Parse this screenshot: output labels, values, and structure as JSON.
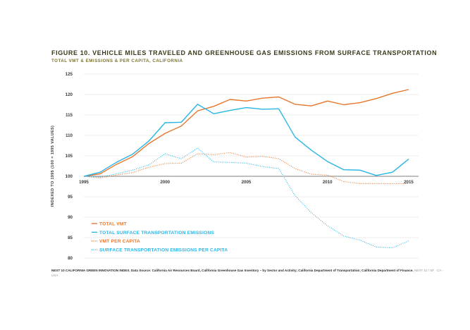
{
  "title": "FIGURE 10. VEHICLE MILES TRAVELED AND GREENHOUSE GAS EMISSIONS FROM SURFACE TRANSPORTATION",
  "subtitle": "TOTAL VMT & EMISSIONS & PER CAPITA, CALIFORNIA",
  "source": {
    "text": "NEXT 10 CALIFORNIA GREEN INNOVATION INDEX. Data Source: California Air Resources Board, California Greenhouse Gas Inventory – by Sector and Activity; California Department of Transportation; California Department of Finance.",
    "slug": "NEXT 10 / SF · CA · USA"
  },
  "chart_data": {
    "type": "line",
    "ylabel": "INDEXED TO 1995 (100 = 1995 VALUES)",
    "ylim": [
      80,
      125
    ],
    "yticks": [
      80,
      85,
      90,
      95,
      100,
      105,
      110,
      115,
      120,
      125
    ],
    "xlim": [
      1995,
      2015
    ],
    "xticks": [
      1995,
      2000,
      2005,
      2010,
      2015
    ],
    "x": [
      1995,
      1996,
      1997,
      1998,
      1999,
      2000,
      2001,
      2002,
      2003,
      2004,
      2005,
      2006,
      2007,
      2008,
      2009,
      2010,
      2011,
      2012,
      2013,
      2014,
      2015
    ],
    "grid": true,
    "legend_position": "bottom-left",
    "series": [
      {
        "name": "TOTAL VMT",
        "color": "#e8772e",
        "style": "solid",
        "values": [
          100,
          100.6,
          102.9,
          104.8,
          108.0,
          110.5,
          112.3,
          116.0,
          117.1,
          118.8,
          118.4,
          119.1,
          119.4,
          117.6,
          117.2,
          118.4,
          117.5,
          118.0,
          119.0,
          120.3,
          121.2
        ]
      },
      {
        "name": "TOTAL SURFACE TRANSPORTATION EMISSIONS",
        "color": "#29b5e6",
        "style": "solid",
        "values": [
          100,
          101.0,
          103.4,
          105.4,
          108.6,
          113.1,
          113.2,
          117.6,
          115.3,
          116.1,
          116.8,
          116.4,
          116.5,
          109.6,
          106.4,
          103.6,
          101.6,
          101.5,
          100.2,
          101.0,
          104.2
        ]
      },
      {
        "name": "VMT PER CAPITA",
        "color": "#e8772e",
        "style": "dotted",
        "values": [
          100,
          99.6,
          100.3,
          100.9,
          102.2,
          103.1,
          103.2,
          105.5,
          105.3,
          105.8,
          104.7,
          104.9,
          104.3,
          101.9,
          100.5,
          100.3,
          98.7,
          98.2,
          98.2,
          98.2,
          98.2
        ]
      },
      {
        "name": "SURFACE TRANSPORTATION EMISSIONS PER CAPITA",
        "color": "#29b5e6",
        "style": "dotted",
        "values": [
          100,
          99.8,
          100.6,
          101.5,
          102.8,
          105.5,
          104.3,
          106.9,
          103.5,
          103.4,
          103.2,
          102.4,
          101.9,
          95.3,
          91.1,
          87.9,
          85.4,
          84.4,
          82.7,
          82.5,
          84.2
        ]
      }
    ]
  }
}
